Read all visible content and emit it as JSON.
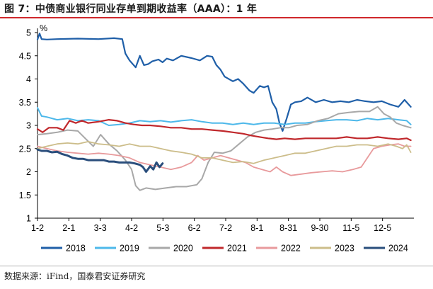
{
  "figure": {
    "title": "图 7：中债商业银行同业存单到期收益率（AAA）：1 年",
    "source": "数据来源：iFind，国泰君安证券研究"
  },
  "chart_data": {
    "type": "line",
    "unit_label": "%",
    "ylim": [
      1,
      5
    ],
    "yticks": [
      "1",
      "1.5",
      "2",
      "2.5",
      "3",
      "3.5",
      "4",
      "4.5",
      "5"
    ],
    "x_tick_labels": [
      "1-2",
      "2-1",
      "3-3",
      "4-2",
      "5-3",
      "6-2",
      "7-2",
      "8-1",
      "8-31",
      "9-30",
      "11-5",
      "12-5"
    ],
    "x_domain_days": [
      1,
      365
    ],
    "legend_position": "bottom",
    "grid": false,
    "series": [
      {
        "name": "2018",
        "color": "#1f5fa8",
        "width": 2.2,
        "points": [
          [
            1,
            4.85
          ],
          [
            3,
            4.98
          ],
          [
            5,
            4.86
          ],
          [
            10,
            4.85
          ],
          [
            20,
            4.86
          ],
          [
            40,
            4.87
          ],
          [
            60,
            4.86
          ],
          [
            75,
            4.88
          ],
          [
            83,
            4.86
          ],
          [
            86,
            4.55
          ],
          [
            90,
            4.4
          ],
          [
            96,
            4.25
          ],
          [
            100,
            4.5
          ],
          [
            104,
            4.3
          ],
          [
            108,
            4.32
          ],
          [
            112,
            4.38
          ],
          [
            118,
            4.42
          ],
          [
            122,
            4.36
          ],
          [
            126,
            4.44
          ],
          [
            132,
            4.4
          ],
          [
            140,
            4.5
          ],
          [
            150,
            4.45
          ],
          [
            158,
            4.4
          ],
          [
            165,
            4.5
          ],
          [
            170,
            4.48
          ],
          [
            174,
            4.3
          ],
          [
            178,
            4.2
          ],
          [
            182,
            4.05
          ],
          [
            190,
            3.95
          ],
          [
            195,
            4.0
          ],
          [
            200,
            3.9
          ],
          [
            206,
            3.75
          ],
          [
            210,
            3.7
          ],
          [
            216,
            3.85
          ],
          [
            220,
            3.82
          ],
          [
            224,
            3.85
          ],
          [
            228,
            3.5
          ],
          [
            232,
            3.35
          ],
          [
            235,
            3.05
          ],
          [
            238,
            2.88
          ],
          [
            242,
            3.15
          ],
          [
            246,
            3.45
          ],
          [
            250,
            3.5
          ],
          [
            256,
            3.52
          ],
          [
            262,
            3.6
          ],
          [
            270,
            3.5
          ],
          [
            278,
            3.55
          ],
          [
            286,
            3.5
          ],
          [
            294,
            3.52
          ],
          [
            302,
            3.5
          ],
          [
            310,
            3.55
          ],
          [
            318,
            3.52
          ],
          [
            326,
            3.5
          ],
          [
            334,
            3.52
          ],
          [
            342,
            3.45
          ],
          [
            350,
            3.4
          ],
          [
            356,
            3.55
          ],
          [
            362,
            3.4
          ]
        ]
      },
      {
        "name": "2019",
        "color": "#4db8ea",
        "width": 2.0,
        "points": [
          [
            1,
            3.38
          ],
          [
            5,
            3.2
          ],
          [
            10,
            3.18
          ],
          [
            20,
            3.12
          ],
          [
            30,
            3.15
          ],
          [
            40,
            3.1
          ],
          [
            50,
            3.12
          ],
          [
            60,
            3.1
          ],
          [
            70,
            3.0
          ],
          [
            80,
            3.02
          ],
          [
            90,
            3.05
          ],
          [
            100,
            3.1
          ],
          [
            110,
            3.08
          ],
          [
            120,
            3.1
          ],
          [
            130,
            3.07
          ],
          [
            140,
            3.1
          ],
          [
            150,
            3.12
          ],
          [
            160,
            3.08
          ],
          [
            170,
            3.05
          ],
          [
            180,
            3.05
          ],
          [
            190,
            3.02
          ],
          [
            200,
            3.05
          ],
          [
            210,
            3.02
          ],
          [
            220,
            3.05
          ],
          [
            230,
            3.05
          ],
          [
            240,
            3.02
          ],
          [
            250,
            3.05
          ],
          [
            260,
            3.05
          ],
          [
            270,
            3.08
          ],
          [
            280,
            3.1
          ],
          [
            290,
            3.12
          ],
          [
            300,
            3.12
          ],
          [
            310,
            3.1
          ],
          [
            320,
            3.15
          ],
          [
            330,
            3.12
          ],
          [
            340,
            3.15
          ],
          [
            350,
            3.12
          ],
          [
            358,
            3.1
          ],
          [
            362,
            3.02
          ]
        ]
      },
      {
        "name": "2020",
        "color": "#a8a8a8",
        "width": 2.0,
        "points": [
          [
            1,
            2.8
          ],
          [
            10,
            2.82
          ],
          [
            20,
            2.85
          ],
          [
            30,
            2.9
          ],
          [
            40,
            2.88
          ],
          [
            48,
            2.7
          ],
          [
            55,
            2.55
          ],
          [
            62,
            2.8
          ],
          [
            70,
            2.6
          ],
          [
            78,
            2.45
          ],
          [
            86,
            2.25
          ],
          [
            92,
            2.05
          ],
          [
            96,
            1.7
          ],
          [
            100,
            1.6
          ],
          [
            106,
            1.65
          ],
          [
            115,
            1.62
          ],
          [
            125,
            1.65
          ],
          [
            135,
            1.68
          ],
          [
            145,
            1.68
          ],
          [
            155,
            1.72
          ],
          [
            160,
            1.85
          ],
          [
            166,
            2.2
          ],
          [
            172,
            2.42
          ],
          [
            180,
            2.4
          ],
          [
            188,
            2.45
          ],
          [
            196,
            2.6
          ],
          [
            204,
            2.75
          ],
          [
            212,
            2.85
          ],
          [
            220,
            2.9
          ],
          [
            228,
            2.92
          ],
          [
            236,
            2.95
          ],
          [
            244,
            2.95
          ],
          [
            252,
            3.0
          ],
          [
            262,
            3.02
          ],
          [
            272,
            3.1
          ],
          [
            282,
            3.15
          ],
          [
            292,
            3.25
          ],
          [
            302,
            3.28
          ],
          [
            312,
            3.3
          ],
          [
            322,
            3.3
          ],
          [
            330,
            3.4
          ],
          [
            336,
            3.25
          ],
          [
            342,
            3.18
          ],
          [
            348,
            3.05
          ],
          [
            354,
            3.0
          ],
          [
            362,
            2.95
          ]
        ]
      },
      {
        "name": "2021",
        "color": "#c0282c",
        "width": 2.2,
        "points": [
          [
            1,
            2.92
          ],
          [
            6,
            2.85
          ],
          [
            12,
            2.95
          ],
          [
            20,
            2.95
          ],
          [
            26,
            2.9
          ],
          [
            32,
            3.1
          ],
          [
            38,
            3.05
          ],
          [
            44,
            3.1
          ],
          [
            50,
            3.05
          ],
          [
            60,
            3.08
          ],
          [
            70,
            3.12
          ],
          [
            78,
            3.1
          ],
          [
            86,
            3.05
          ],
          [
            94,
            3.02
          ],
          [
            102,
            3.0
          ],
          [
            110,
            3.0
          ],
          [
            120,
            2.98
          ],
          [
            130,
            2.95
          ],
          [
            140,
            2.95
          ],
          [
            150,
            2.92
          ],
          [
            160,
            2.92
          ],
          [
            170,
            2.9
          ],
          [
            180,
            2.88
          ],
          [
            190,
            2.85
          ],
          [
            200,
            2.82
          ],
          [
            208,
            2.78
          ],
          [
            216,
            2.75
          ],
          [
            224,
            2.72
          ],
          [
            232,
            2.7
          ],
          [
            240,
            2.72
          ],
          [
            250,
            2.7
          ],
          [
            260,
            2.72
          ],
          [
            270,
            2.72
          ],
          [
            280,
            2.72
          ],
          [
            290,
            2.72
          ],
          [
            300,
            2.75
          ],
          [
            310,
            2.72
          ],
          [
            320,
            2.72
          ],
          [
            330,
            2.75
          ],
          [
            340,
            2.72
          ],
          [
            350,
            2.7
          ],
          [
            358,
            2.72
          ],
          [
            362,
            2.68
          ]
        ]
      },
      {
        "name": "2022",
        "color": "#e89a9c",
        "width": 1.8,
        "points": [
          [
            1,
            2.55
          ],
          [
            10,
            2.5
          ],
          [
            20,
            2.45
          ],
          [
            30,
            2.42
          ],
          [
            40,
            2.4
          ],
          [
            50,
            2.38
          ],
          [
            60,
            2.4
          ],
          [
            70,
            2.38
          ],
          [
            80,
            2.35
          ],
          [
            90,
            2.3
          ],
          [
            100,
            2.2
          ],
          [
            110,
            2.15
          ],
          [
            120,
            2.1
          ],
          [
            130,
            2.05
          ],
          [
            140,
            2.1
          ],
          [
            150,
            2.2
          ],
          [
            156,
            2.35
          ],
          [
            162,
            2.25
          ],
          [
            170,
            2.3
          ],
          [
            178,
            2.35
          ],
          [
            186,
            2.3
          ],
          [
            194,
            2.25
          ],
          [
            202,
            2.2
          ],
          [
            210,
            2.1
          ],
          [
            218,
            2.05
          ],
          [
            226,
            2.0
          ],
          [
            232,
            2.1
          ],
          [
            238,
            2.0
          ],
          [
            246,
            1.92
          ],
          [
            256,
            1.95
          ],
          [
            266,
            1.98
          ],
          [
            276,
            2.0
          ],
          [
            286,
            2.02
          ],
          [
            296,
            2.0
          ],
          [
            306,
            2.05
          ],
          [
            314,
            2.1
          ],
          [
            320,
            2.3
          ],
          [
            326,
            2.5
          ],
          [
            334,
            2.55
          ],
          [
            342,
            2.58
          ],
          [
            350,
            2.6
          ],
          [
            356,
            2.55
          ],
          [
            362,
            2.55
          ]
        ]
      },
      {
        "name": "2023",
        "color": "#ccbd8a",
        "width": 1.8,
        "points": [
          [
            1,
            2.5
          ],
          [
            10,
            2.55
          ],
          [
            20,
            2.6
          ],
          [
            30,
            2.62
          ],
          [
            40,
            2.6
          ],
          [
            50,
            2.65
          ],
          [
            60,
            2.6
          ],
          [
            70,
            2.58
          ],
          [
            80,
            2.55
          ],
          [
            90,
            2.6
          ],
          [
            100,
            2.55
          ],
          [
            110,
            2.55
          ],
          [
            120,
            2.5
          ],
          [
            130,
            2.45
          ],
          [
            140,
            2.42
          ],
          [
            150,
            2.38
          ],
          [
            160,
            2.3
          ],
          [
            170,
            2.3
          ],
          [
            180,
            2.25
          ],
          [
            190,
            2.2
          ],
          [
            200,
            2.22
          ],
          [
            210,
            2.18
          ],
          [
            220,
            2.25
          ],
          [
            230,
            2.3
          ],
          [
            240,
            2.35
          ],
          [
            250,
            2.4
          ],
          [
            260,
            2.4
          ],
          [
            270,
            2.45
          ],
          [
            280,
            2.5
          ],
          [
            290,
            2.55
          ],
          [
            300,
            2.55
          ],
          [
            310,
            2.58
          ],
          [
            320,
            2.58
          ],
          [
            330,
            2.55
          ],
          [
            340,
            2.6
          ],
          [
            348,
            2.55
          ],
          [
            354,
            2.5
          ],
          [
            358,
            2.58
          ],
          [
            362,
            2.42
          ]
        ]
      },
      {
        "name": "2024",
        "color": "#2a4e7c",
        "width": 3.0,
        "points": [
          [
            1,
            2.48
          ],
          [
            5,
            2.45
          ],
          [
            10,
            2.45
          ],
          [
            15,
            2.42
          ],
          [
            20,
            2.43
          ],
          [
            25,
            2.38
          ],
          [
            30,
            2.35
          ],
          [
            35,
            2.3
          ],
          [
            40,
            2.28
          ],
          [
            45,
            2.28
          ],
          [
            50,
            2.25
          ],
          [
            55,
            2.25
          ],
          [
            60,
            2.25
          ],
          [
            65,
            2.25
          ],
          [
            70,
            2.22
          ],
          [
            75,
            2.22
          ],
          [
            80,
            2.2
          ],
          [
            85,
            2.2
          ],
          [
            90,
            2.2
          ],
          [
            95,
            2.18
          ],
          [
            100,
            2.15
          ],
          [
            103,
            2.1
          ],
          [
            106,
            2.0
          ],
          [
            110,
            2.12
          ],
          [
            113,
            2.05
          ],
          [
            116,
            2.2
          ],
          [
            119,
            2.1
          ],
          [
            122,
            2.18
          ]
        ]
      }
    ]
  }
}
